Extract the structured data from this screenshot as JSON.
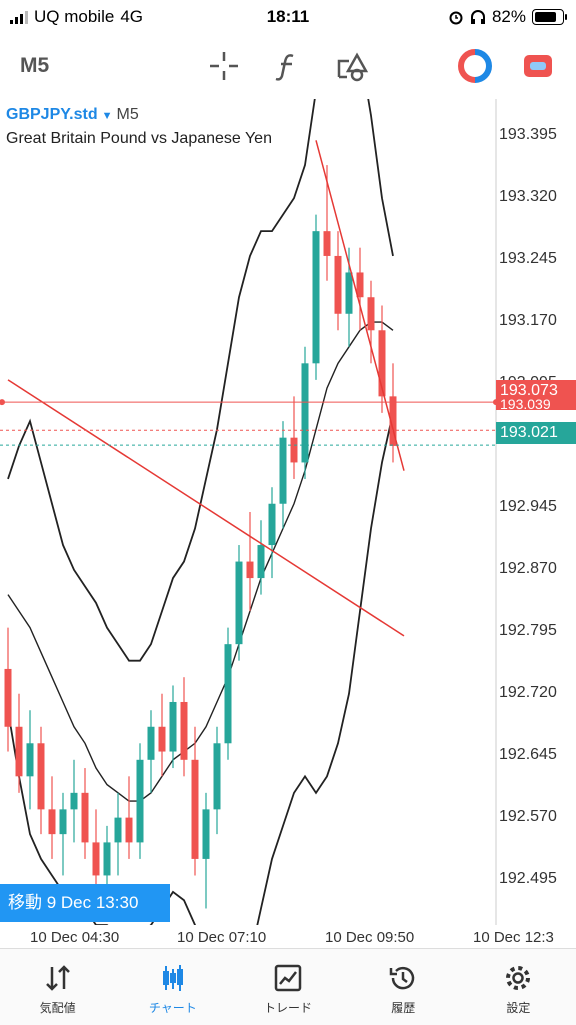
{
  "status": {
    "carrier": "UQ mobile",
    "network": "4G",
    "time": "18:11",
    "battery": "82%",
    "battery_level": 0.82
  },
  "toolbar": {
    "timeframe": "M5",
    "icons": [
      "crosshair-icon",
      "function-icon",
      "objects-icon",
      "trade-icon",
      "chart-type-icon"
    ]
  },
  "symbol": {
    "code": "GBPJPY.std",
    "period": "M5",
    "description": "Great Britain Pound vs Japanese Yen"
  },
  "price_axis": [
    "193.395",
    "193.320",
    "193.245",
    "193.170",
    "193.095",
    "192.945",
    "192.870",
    "192.795",
    "192.720",
    "192.645",
    "192.570",
    "192.495"
  ],
  "price_tags": {
    "ask": "193.073",
    "hidden": "193.039",
    "bid": "193.021"
  },
  "time_axis": [
    "10 Dec 04:30",
    "10 Dec 07:10",
    "10 Dec 09:50",
    "10 Dec 12:3"
  ],
  "cursor_label": "移動 9 Dec 13:30",
  "colors": {
    "bull": "#26a69a",
    "bear": "#ef5350",
    "ask": "#ef5350",
    "bid": "#26a69a",
    "active": "#1e88e5"
  },
  "nav": [
    {
      "label": "気配値",
      "icon": "quotes-icon"
    },
    {
      "label": "チャート",
      "icon": "chart-icon",
      "active": true
    },
    {
      "label": "トレード",
      "icon": "trade-icon"
    },
    {
      "label": "履歴",
      "icon": "history-icon"
    },
    {
      "label": "設定",
      "icon": "settings-icon"
    }
  ],
  "chart_data": {
    "type": "candlestick",
    "symbol": "GBPJPY.std",
    "timeframe": "M5",
    "ylim": [
      192.44,
      193.44
    ],
    "candles": [
      [
        192.75,
        192.8,
        192.65,
        192.68
      ],
      [
        192.68,
        192.72,
        192.6,
        192.62
      ],
      [
        192.62,
        192.7,
        192.58,
        192.66
      ],
      [
        192.66,
        192.68,
        192.55,
        192.58
      ],
      [
        192.58,
        192.62,
        192.52,
        192.55
      ],
      [
        192.55,
        192.6,
        192.5,
        192.58
      ],
      [
        192.58,
        192.64,
        192.54,
        192.6
      ],
      [
        192.6,
        192.63,
        192.52,
        192.54
      ],
      [
        192.54,
        192.58,
        192.47,
        192.5
      ],
      [
        192.5,
        192.56,
        192.46,
        192.54
      ],
      [
        192.54,
        192.6,
        192.5,
        192.57
      ],
      [
        192.57,
        192.62,
        192.52,
        192.54
      ],
      [
        192.54,
        192.66,
        192.52,
        192.64
      ],
      [
        192.64,
        192.7,
        192.6,
        192.68
      ],
      [
        192.68,
        192.72,
        192.62,
        192.65
      ],
      [
        192.65,
        192.73,
        192.63,
        192.71
      ],
      [
        192.71,
        192.74,
        192.62,
        192.64
      ],
      [
        192.64,
        192.68,
        192.5,
        192.52
      ],
      [
        192.52,
        192.6,
        192.46,
        192.58
      ],
      [
        192.58,
        192.68,
        192.55,
        192.66
      ],
      [
        192.66,
        192.8,
        192.64,
        192.78
      ],
      [
        192.78,
        192.9,
        192.76,
        192.88
      ],
      [
        192.88,
        192.94,
        192.82,
        192.86
      ],
      [
        192.86,
        192.93,
        192.84,
        192.9
      ],
      [
        192.9,
        192.97,
        192.86,
        192.95
      ],
      [
        192.95,
        193.05,
        192.92,
        193.03
      ],
      [
        193.03,
        193.08,
        192.98,
        193.0
      ],
      [
        193.0,
        193.14,
        192.98,
        193.12
      ],
      [
        193.12,
        193.3,
        193.1,
        193.28
      ],
      [
        193.28,
        193.36,
        193.22,
        193.25
      ],
      [
        193.25,
        193.28,
        193.16,
        193.18
      ],
      [
        193.18,
        193.26,
        193.14,
        193.23
      ],
      [
        193.23,
        193.26,
        193.16,
        193.2
      ],
      [
        193.2,
        193.22,
        193.12,
        193.16
      ],
      [
        193.16,
        193.19,
        193.06,
        193.08
      ],
      [
        193.08,
        193.12,
        193.0,
        193.02
      ]
    ],
    "bollinger": {
      "upper": [
        192.98,
        193.02,
        193.05,
        193.0,
        192.95,
        192.9,
        192.87,
        192.85,
        192.83,
        192.8,
        192.78,
        192.76,
        192.76,
        192.78,
        192.82,
        192.86,
        192.88,
        192.92,
        192.98,
        193.04,
        193.12,
        193.2,
        193.25,
        193.28,
        193.28,
        193.3,
        193.32,
        193.36,
        193.45,
        193.55,
        193.58,
        193.56,
        193.5,
        193.42,
        193.32,
        193.25
      ],
      "middle": [
        192.84,
        192.82,
        192.8,
        192.77,
        192.74,
        192.71,
        192.68,
        192.66,
        192.63,
        192.61,
        192.6,
        192.59,
        192.59,
        192.6,
        192.62,
        192.64,
        192.65,
        192.66,
        192.68,
        192.71,
        192.74,
        192.78,
        192.82,
        192.86,
        192.89,
        192.92,
        192.95,
        192.99,
        193.04,
        193.09,
        193.12,
        193.14,
        193.16,
        193.17,
        193.17,
        193.16
      ],
      "lower": [
        192.7,
        192.62,
        192.55,
        192.52,
        192.5,
        192.48,
        192.47,
        192.46,
        192.44,
        192.44,
        192.43,
        192.43,
        192.43,
        192.44,
        192.46,
        192.48,
        192.47,
        192.44,
        192.4,
        192.38,
        192.36,
        192.36,
        192.4,
        192.46,
        192.52,
        192.56,
        192.6,
        192.62,
        192.6,
        192.62,
        192.66,
        192.72,
        192.82,
        192.92,
        193.0,
        193.06
      ]
    },
    "trendlines": [
      [
        [
          0,
          193.1
        ],
        [
          36,
          192.79
        ]
      ],
      [
        [
          28,
          193.39
        ],
        [
          36,
          192.99
        ]
      ]
    ]
  }
}
